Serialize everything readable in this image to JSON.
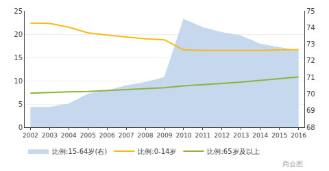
{
  "chart_data": {
    "type": "line",
    "x": [
      2002,
      2003,
      2004,
      2005,
      2006,
      2007,
      2008,
      2009,
      2010,
      2011,
      2012,
      2013,
      2014,
      2015,
      2016
    ],
    "xlim": [
      2001.7,
      2016.3
    ],
    "xticks": [
      2002,
      2003,
      2004,
      2005,
      2006,
      2007,
      2008,
      2009,
      2010,
      2011,
      2012,
      2013,
      2014,
      2015,
      2016
    ],
    "ylim": [
      0,
      25
    ],
    "yticks": [
      0,
      5,
      10,
      15,
      20,
      25
    ],
    "y2lim": [
      68,
      75
    ],
    "y2ticks": [
      68,
      69,
      70,
      71,
      72,
      73,
      74,
      75
    ],
    "grid": true,
    "legend": "bottom",
    "annotations": [
      "商会图"
    ],
    "series": [
      {
        "name": "比例:15-64岁(右)",
        "type": "area",
        "axis": "y2",
        "color": "#C5D8ED",
        "values": [
          69.2,
          69.2,
          69.4,
          70.0,
          70.2,
          70.5,
          70.7,
          71.0,
          74.5,
          74.0,
          73.7,
          73.5,
          73.0,
          72.8,
          72.6
        ]
      },
      {
        "name": "比例:0-14岁",
        "type": "line",
        "color": "#FDB813",
        "values": [
          22.4,
          22.3,
          21.5,
          20.3,
          19.8,
          19.4,
          19.0,
          18.8,
          16.6,
          16.5,
          16.5,
          16.4,
          16.5,
          16.6,
          16.7
        ]
      },
      {
        "name": "比例:65岁及以上",
        "type": "line",
        "color": "#8DB33A",
        "values": [
          7.3,
          7.5,
          7.6,
          7.7,
          7.9,
          8.1,
          8.3,
          8.5,
          8.9,
          9.1,
          9.4,
          9.7,
          10.1,
          10.5,
          10.8
        ]
      }
    ]
  }
}
